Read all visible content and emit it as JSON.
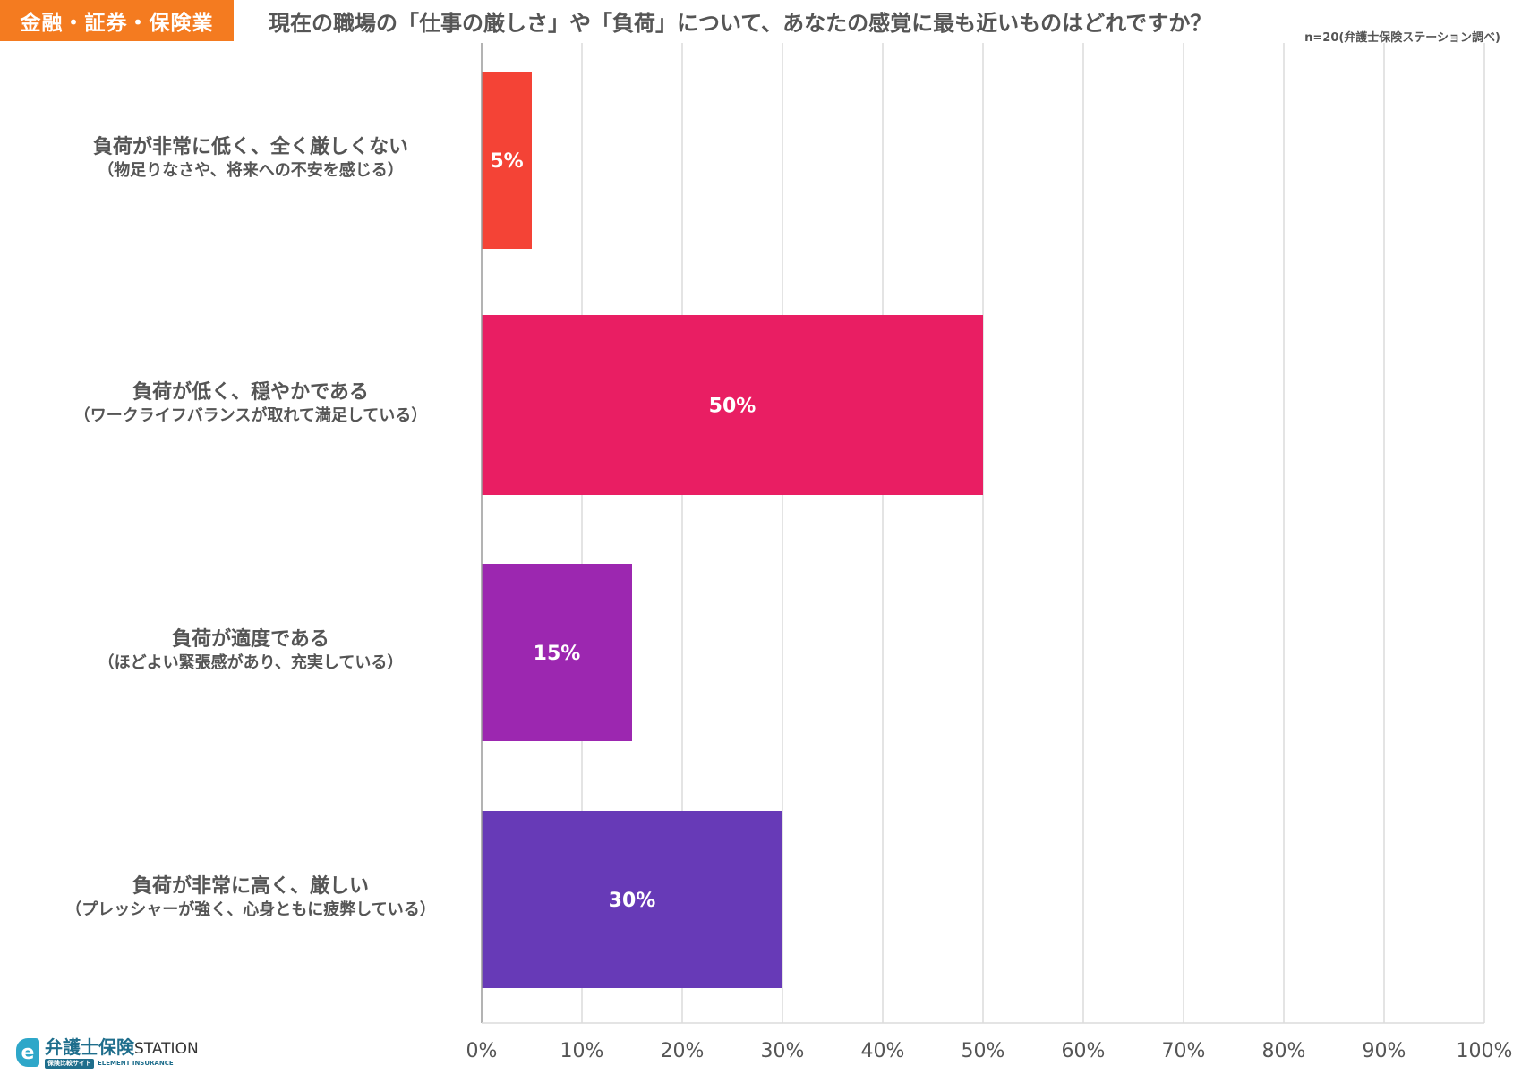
{
  "header": {
    "category_tag": "金融・証券・保険業",
    "question": "現在の職場の「仕事の厳しさ」や「負荷」について、あなたの感覚に最も近いものはどれですか？",
    "sample_note": "n=20(弁護士保険ステーション調べ)"
  },
  "logo": {
    "name": "弁護士保険",
    "suffix": "STATION",
    "badge": "保険比較サイト",
    "company": "ELEMENT INSURANCE"
  },
  "chart_data": {
    "type": "bar",
    "orientation": "horizontal",
    "categories": [
      {
        "main": "負荷が非常に低く、全く厳しくない",
        "sub": "（物足りなさや、将来への不安を感じる）"
      },
      {
        "main": "負荷が低く、穏やかである",
        "sub": "（ワークライフバランスが取れて満足している）"
      },
      {
        "main": "負荷が適度である",
        "sub": "（ほどよい緊張感があり、充実している）"
      },
      {
        "main": "負荷が非常に高く、厳しい",
        "sub": "（プレッシャーが強く、心身ともに疲弊している）"
      }
    ],
    "values": [
      5,
      50,
      15,
      30
    ],
    "value_labels": [
      "5%",
      "50%",
      "15%",
      "30%"
    ],
    "colors": [
      "#f44336",
      "#e91e63",
      "#9c27b0",
      "#673ab7"
    ],
    "xlim": [
      0,
      100
    ],
    "x_ticks": [
      "0%",
      "10%",
      "20%",
      "30%",
      "40%",
      "50%",
      "60%",
      "70%",
      "80%",
      "90%",
      "100%"
    ],
    "grid": true
  }
}
